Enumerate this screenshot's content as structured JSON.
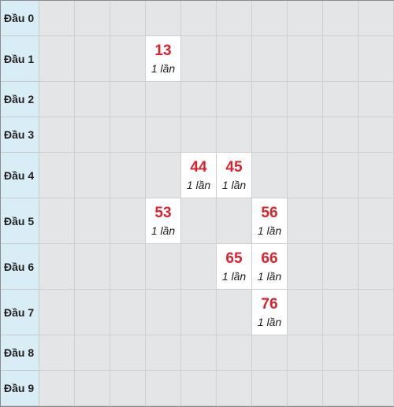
{
  "rows": [
    {
      "label": "Đầu 0",
      "cells": [
        null,
        null,
        null,
        null,
        null,
        null,
        null,
        null,
        null,
        null
      ]
    },
    {
      "label": "Đầu 1",
      "cells": [
        null,
        null,
        null,
        {
          "number": "13",
          "count": "1 lần"
        },
        null,
        null,
        null,
        null,
        null,
        null
      ]
    },
    {
      "label": "Đầu 2",
      "cells": [
        null,
        null,
        null,
        null,
        null,
        null,
        null,
        null,
        null,
        null
      ]
    },
    {
      "label": "Đầu 3",
      "cells": [
        null,
        null,
        null,
        null,
        null,
        null,
        null,
        null,
        null,
        null
      ]
    },
    {
      "label": "Đầu 4",
      "cells": [
        null,
        null,
        null,
        null,
        {
          "number": "44",
          "count": "1 lần"
        },
        {
          "number": "45",
          "count": "1 lần"
        },
        null,
        null,
        null,
        null
      ]
    },
    {
      "label": "Đầu 5",
      "cells": [
        null,
        null,
        null,
        {
          "number": "53",
          "count": "1 lần"
        },
        null,
        null,
        {
          "number": "56",
          "count": "1 lần"
        },
        null,
        null,
        null
      ]
    },
    {
      "label": "Đầu 6",
      "cells": [
        null,
        null,
        null,
        null,
        null,
        {
          "number": "65",
          "count": "1 lần"
        },
        {
          "number": "66",
          "count": "1 lần"
        },
        null,
        null,
        null
      ]
    },
    {
      "label": "Đầu 7",
      "cells": [
        null,
        null,
        null,
        null,
        null,
        null,
        {
          "number": "76",
          "count": "1 lần"
        },
        null,
        null,
        null
      ]
    },
    {
      "label": "Đầu 8",
      "cells": [
        null,
        null,
        null,
        null,
        null,
        null,
        null,
        null,
        null,
        null
      ]
    },
    {
      "label": "Đầu 9",
      "cells": [
        null,
        null,
        null,
        null,
        null,
        null,
        null,
        null,
        null,
        null
      ]
    }
  ]
}
